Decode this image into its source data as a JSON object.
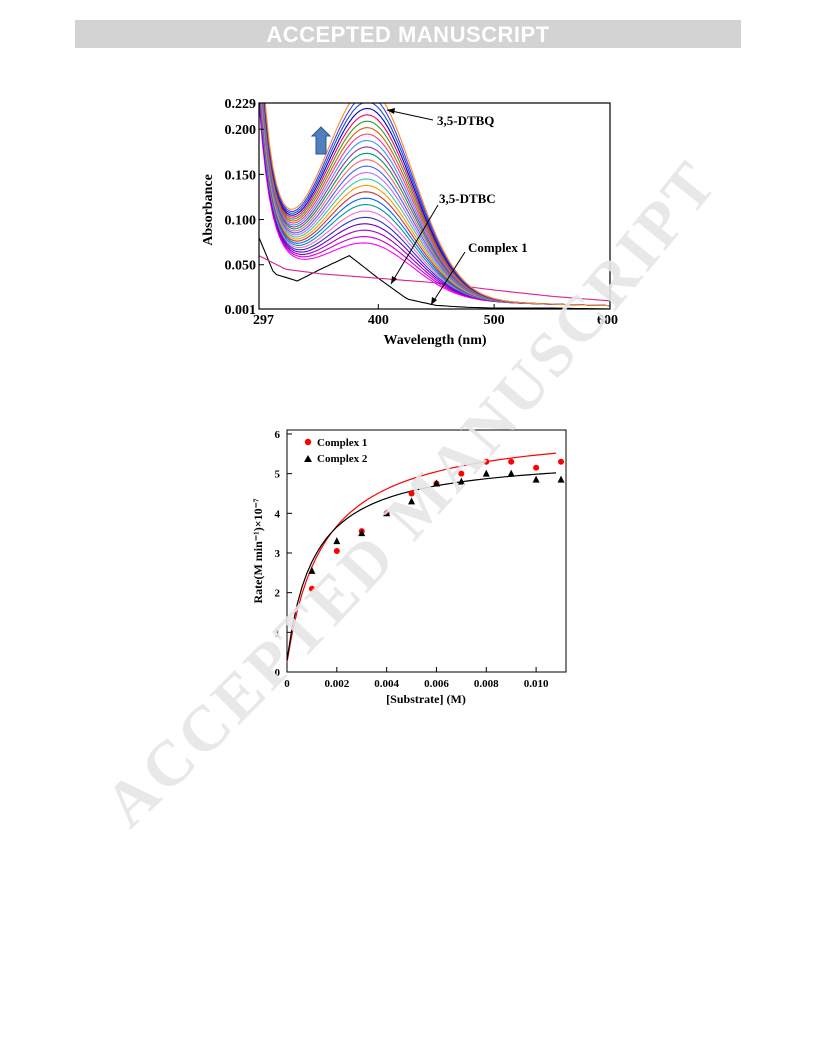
{
  "header": {
    "banner": "ACCEPTED MANUSCRIPT"
  },
  "watermark": {
    "text": "ACCEPTED MANUSCRIPT",
    "color": "#e5e5e5"
  },
  "chart_data": [
    {
      "type": "line",
      "xlabel": "Wavelength (nm)",
      "ylabel": "Absorbance",
      "xlim": [
        297,
        600
      ],
      "ylim": [
        0.001,
        0.229
      ],
      "x_ticks": [
        297,
        400,
        500,
        600
      ],
      "y_ticks": [
        0.001,
        0.05,
        0.1,
        0.15,
        0.2,
        0.229
      ],
      "x_tick_labels": [
        "297",
        "400",
        "500",
        "600"
      ],
      "y_tick_labels": [
        "0.001",
        "0.050",
        "0.100",
        "0.150",
        "0.200",
        "0.229"
      ],
      "annotations": [
        "3,5-DTBQ",
        "3,5-DTBC",
        "Complex 1"
      ],
      "arrow_color": "#4f81bd",
      "grid": false,
      "series": [
        {
          "values_x": [
            297,
            310,
            330,
            350,
            375,
            400,
            425,
            450,
            475,
            500,
            550,
            600
          ],
          "values_y": [
            0.08,
            0.04,
            0.032,
            0.045,
            0.06,
            0.035,
            0.012,
            0.005,
            0.003,
            0.002,
            0.002,
            0.001
          ],
          "color": "#000000"
        },
        {
          "values_x": [
            297,
            320,
            350,
            400,
            450,
            500,
            550,
            600
          ],
          "values_y": [
            0.06,
            0.045,
            0.04,
            0.035,
            0.03,
            0.022,
            0.015,
            0.01
          ],
          "color": "#e0208f"
        },
        {
          "peak": 0.055,
          "color": "#ff00ff"
        },
        {
          "peak": 0.062,
          "color": "#cc00cc"
        },
        {
          "peak": 0.069,
          "color": "#9900cc"
        },
        {
          "peak": 0.076,
          "color": "#6600cc"
        },
        {
          "peak": 0.083,
          "color": "#3333cc"
        },
        {
          "peak": 0.09,
          "color": "#ff66cc"
        },
        {
          "peak": 0.097,
          "color": "#009999"
        },
        {
          "peak": 0.104,
          "color": "#0066ff"
        },
        {
          "peak": 0.111,
          "color": "#cc3333"
        },
        {
          "peak": 0.118,
          "color": "#ff9900"
        },
        {
          "peak": 0.125,
          "color": "#33cc99"
        },
        {
          "peak": 0.132,
          "color": "#cc66ff"
        },
        {
          "peak": 0.139,
          "color": "#3366ff"
        },
        {
          "peak": 0.146,
          "color": "#ff6666"
        },
        {
          "peak": 0.153,
          "color": "#009966"
        },
        {
          "peak": 0.16,
          "color": "#993399"
        },
        {
          "peak": 0.167,
          "color": "#3399ff"
        },
        {
          "peak": 0.174,
          "color": "#ff3399"
        },
        {
          "peak": 0.181,
          "color": "#cc6600"
        },
        {
          "peak": 0.188,
          "color": "#339933"
        },
        {
          "peak": 0.195,
          "color": "#ff0066"
        },
        {
          "peak": 0.202,
          "color": "#0000cc"
        },
        {
          "peak": 0.209,
          "color": "#1f4fbf"
        },
        {
          "peak": 0.216,
          "color": "#3b3bff"
        },
        {
          "peak": 0.224,
          "color": "#ff8c1a"
        }
      ]
    },
    {
      "type": "scatter",
      "xlabel": "[Substrate] (M)",
      "ylabel": "Rate(M min⁻¹)×10⁻⁷",
      "xlim": [
        0,
        0.0112
      ],
      "ylim": [
        0,
        6.1
      ],
      "x_ticks": [
        0,
        0.002,
        0.004,
        0.006,
        0.008,
        0.01
      ],
      "x_tick_labels": [
        "0",
        "0.002",
        "0.004",
        "0.006",
        "0.008",
        "0.010"
      ],
      "y_ticks": [
        0,
        1,
        2,
        3,
        4,
        5,
        6
      ],
      "y_tick_labels": [
        "0",
        "1",
        "2",
        "3",
        "4",
        "5",
        "6"
      ],
      "legend_position": "top-left",
      "grid": false,
      "series": [
        {
          "name": "Complex 1",
          "marker": "circle",
          "color": "#ff0000",
          "x": [
            0.001,
            0.002,
            0.003,
            0.004,
            0.005,
            0.006,
            0.007,
            0.008,
            0.009,
            0.01,
            0.011
          ],
          "y": [
            2.1,
            3.05,
            3.55,
            4.0,
            4.5,
            4.75,
            5.0,
            5.3,
            5.3,
            5.15,
            5.3
          ],
          "fit": {
            "vmax": 6.0,
            "km": 0.0015,
            "offset": 0.25
          }
        },
        {
          "name": "Complex 2",
          "marker": "triangle",
          "color": "#000000",
          "x": [
            0.001,
            0.002,
            0.003,
            0.004,
            0.005,
            0.006,
            0.007,
            0.008,
            0.009,
            0.01,
            0.011
          ],
          "y": [
            2.55,
            3.3,
            3.5,
            4.0,
            4.3,
            4.75,
            4.8,
            5.0,
            5.0,
            4.85,
            4.85
          ],
          "fit": {
            "vmax": 5.2,
            "km": 0.0011,
            "offset": 0.3
          }
        }
      ]
    }
  ]
}
